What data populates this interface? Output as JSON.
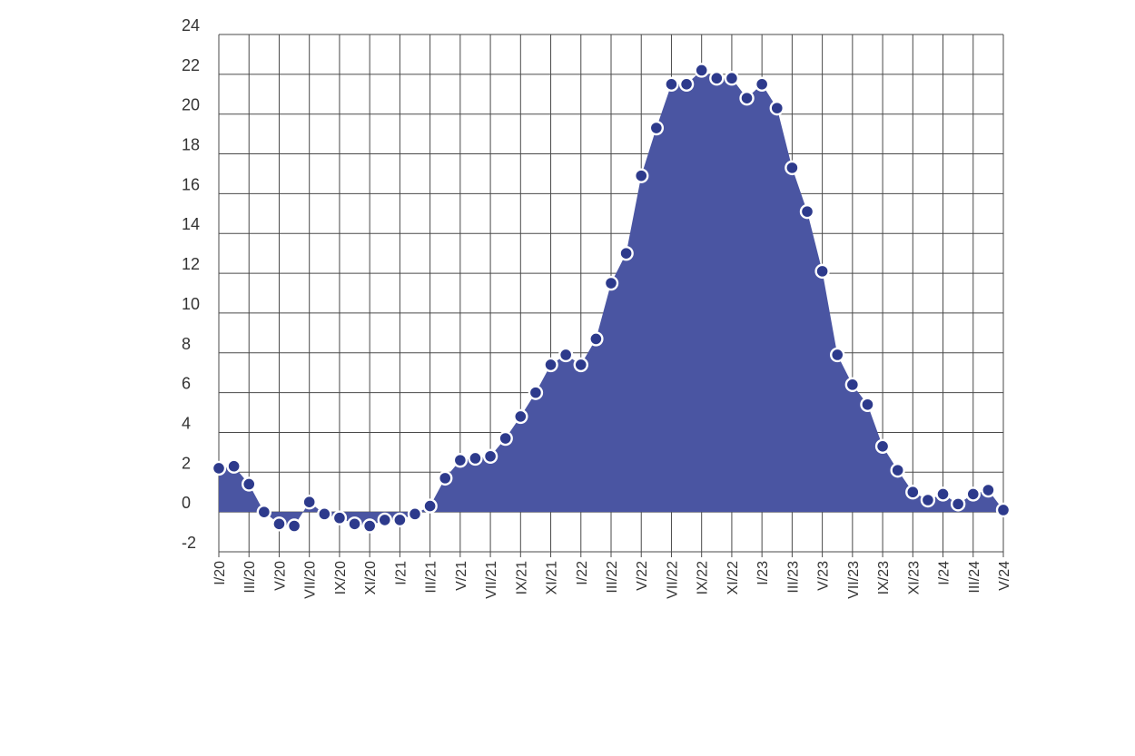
{
  "chart_data": {
    "type": "area",
    "title": "",
    "xlabel": "",
    "ylabel": "",
    "ylim": [
      -2,
      24
    ],
    "yticks": [
      -2,
      0,
      2,
      4,
      6,
      8,
      10,
      12,
      14,
      16,
      18,
      20,
      22,
      24
    ],
    "x_tick_labels": [
      "I/20",
      "III/20",
      "V/20",
      "VII/20",
      "IX/20",
      "XI/20",
      "I/21",
      "III/21",
      "V/21",
      "VII/21",
      "IX/21",
      "XI/21",
      "I/22",
      "III/22",
      "V/22",
      "VII/22",
      "IX/22",
      "XI/22",
      "I/23",
      "III/23",
      "V/23",
      "VII/23",
      "IX/23",
      "XI/23",
      "I/24",
      "III/24",
      "V/24"
    ],
    "grid": true,
    "colors": {
      "fill": "#4a55a2",
      "point": "#2d3a8c",
      "point_outline": "#ffffff"
    },
    "series": [
      {
        "values": [
          2.2,
          2.3,
          1.4,
          0.0,
          -0.6,
          -0.7,
          0.5,
          -0.1,
          -0.3,
          -0.6,
          -0.7,
          -0.4,
          -0.4,
          -0.1,
          0.3,
          1.7,
          2.6,
          2.7,
          2.8,
          3.7,
          4.8,
          6.0,
          7.4,
          7.9,
          7.4,
          8.7,
          11.5,
          13.0,
          16.9,
          19.3,
          21.5,
          21.5,
          22.2,
          21.8,
          21.8,
          20.8,
          21.5,
          20.3,
          17.3,
          15.1,
          12.1,
          7.9,
          6.4,
          5.4,
          3.3,
          2.1,
          1.0,
          0.6,
          0.9,
          0.4,
          0.9,
          1.1,
          0.1
        ]
      }
    ]
  }
}
